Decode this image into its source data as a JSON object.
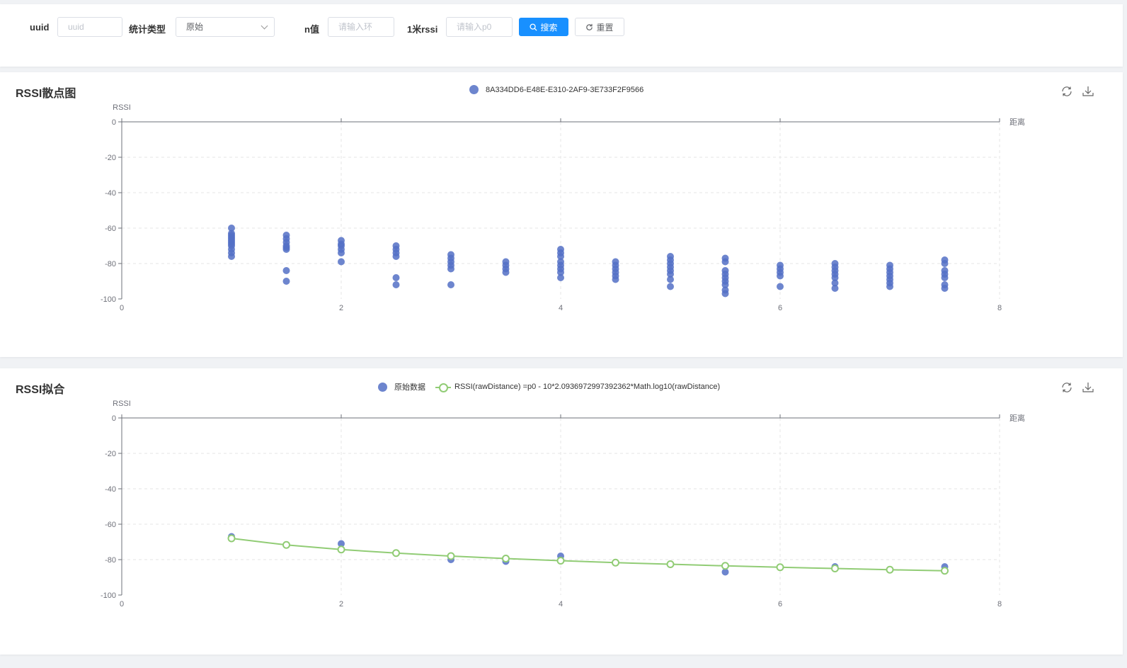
{
  "filters": {
    "uuid_label": "uuid",
    "uuid_placeholder": "uuid",
    "type_label": "统计类型",
    "type_value": "原始",
    "n_label": "n值",
    "n_placeholder": "请输入环",
    "rssi_label": "1米rssi",
    "rssi_placeholder": "请输入p0",
    "search_label": "搜索",
    "reset_label": "重置"
  },
  "colors": {
    "scatter": "#5470c6",
    "fit": "#91cc75",
    "primary": "#1890ff"
  },
  "chart_data": [
    {
      "type": "scatter",
      "title": "RSSI散点图",
      "ylabel": "RSSI",
      "xlabel": "距离",
      "xlim": [
        0,
        8
      ],
      "ylim": [
        -100,
        0
      ],
      "xticks": [
        0,
        2,
        4,
        6,
        8
      ],
      "yticks": [
        0,
        -20,
        -40,
        -60,
        -80,
        -100
      ],
      "grid": true,
      "legend_position": "top-center",
      "series": [
        {
          "name": "8A334DD6-E48E-E310-2AF9-3E733F2F9566",
          "points": [
            [
              1,
              -60
            ],
            [
              1,
              -63
            ],
            [
              1,
              -64
            ],
            [
              1,
              -65
            ],
            [
              1,
              -66
            ],
            [
              1,
              -67
            ],
            [
              1,
              -68
            ],
            [
              1,
              -69
            ],
            [
              1,
              -70
            ],
            [
              1,
              -72
            ],
            [
              1,
              -74
            ],
            [
              1,
              -76
            ],
            [
              1.5,
              -64
            ],
            [
              1.5,
              -66
            ],
            [
              1.5,
              -68
            ],
            [
              1.5,
              -70
            ],
            [
              1.5,
              -71
            ],
            [
              1.5,
              -72
            ],
            [
              1.5,
              -84
            ],
            [
              1.5,
              -90
            ],
            [
              2,
              -67
            ],
            [
              2,
              -69
            ],
            [
              2,
              -70
            ],
            [
              2,
              -72
            ],
            [
              2,
              -74
            ],
            [
              2,
              -79
            ],
            [
              2.5,
              -70
            ],
            [
              2.5,
              -72
            ],
            [
              2.5,
              -74
            ],
            [
              2.5,
              -76
            ],
            [
              2.5,
              -88
            ],
            [
              2.5,
              -92
            ],
            [
              3,
              -75
            ],
            [
              3,
              -77
            ],
            [
              3,
              -79
            ],
            [
              3,
              -81
            ],
            [
              3,
              -83
            ],
            [
              3,
              -92
            ],
            [
              3.5,
              -79
            ],
            [
              3.5,
              -81
            ],
            [
              3.5,
              -83
            ],
            [
              3.5,
              -85
            ],
            [
              4,
              -72
            ],
            [
              4,
              -74
            ],
            [
              4,
              -76
            ],
            [
              4,
              -79
            ],
            [
              4,
              -81
            ],
            [
              4,
              -83
            ],
            [
              4,
              -85
            ],
            [
              4,
              -88
            ],
            [
              4.5,
              -79
            ],
            [
              4.5,
              -81
            ],
            [
              4.5,
              -83
            ],
            [
              4.5,
              -85
            ],
            [
              4.5,
              -87
            ],
            [
              4.5,
              -89
            ],
            [
              5,
              -76
            ],
            [
              5,
              -78
            ],
            [
              5,
              -80
            ],
            [
              5,
              -82
            ],
            [
              5,
              -84
            ],
            [
              5,
              -86
            ],
            [
              5,
              -89
            ],
            [
              5,
              -93
            ],
            [
              5.5,
              -77
            ],
            [
              5.5,
              -79
            ],
            [
              5.5,
              -84
            ],
            [
              5.5,
              -86
            ],
            [
              5.5,
              -88
            ],
            [
              5.5,
              -90
            ],
            [
              5.5,
              -92
            ],
            [
              5.5,
              -95
            ],
            [
              5.5,
              -97
            ],
            [
              6,
              -81
            ],
            [
              6,
              -83
            ],
            [
              6,
              -85
            ],
            [
              6,
              -87
            ],
            [
              6,
              -93
            ],
            [
              6.5,
              -80
            ],
            [
              6.5,
              -82
            ],
            [
              6.5,
              -84
            ],
            [
              6.5,
              -86
            ],
            [
              6.5,
              -88
            ],
            [
              6.5,
              -91
            ],
            [
              6.5,
              -94
            ],
            [
              7,
              -81
            ],
            [
              7,
              -83
            ],
            [
              7,
              -85
            ],
            [
              7,
              -87
            ],
            [
              7,
              -89
            ],
            [
              7,
              -91
            ],
            [
              7,
              -93
            ],
            [
              7.5,
              -78
            ],
            [
              7.5,
              -80
            ],
            [
              7.5,
              -84
            ],
            [
              7.5,
              -86
            ],
            [
              7.5,
              -88
            ],
            [
              7.5,
              -92
            ],
            [
              7.5,
              -94
            ]
          ]
        }
      ]
    },
    {
      "type": "scatter",
      "title": "RSSI拟合",
      "ylabel": "RSSI",
      "xlabel": "距离",
      "xlim": [
        0,
        8
      ],
      "ylim": [
        -100,
        0
      ],
      "xticks": [
        0,
        2,
        4,
        6,
        8
      ],
      "yticks": [
        0,
        -20,
        -40,
        -60,
        -80,
        -100
      ],
      "grid": true,
      "legend_position": "top-center",
      "series": [
        {
          "name": "原始数据",
          "points": [
            [
              1,
              -67
            ],
            [
              2,
              -71
            ],
            [
              3,
              -80
            ],
            [
              3.5,
              -81
            ],
            [
              4,
              -78
            ],
            [
              5.5,
              -87
            ],
            [
              6.5,
              -84
            ],
            [
              7.5,
              -84
            ]
          ]
        },
        {
          "name": "RSSI(rawDistance) =p0 - 10*2.0936972997392362*Math.log10(rawDistance)",
          "line": true,
          "points": [
            [
              1,
              -68
            ],
            [
              1.5,
              -71.7
            ],
            [
              2,
              -74.3
            ],
            [
              2.5,
              -76.3
            ],
            [
              3,
              -78
            ],
            [
              3.5,
              -79.4
            ],
            [
              4,
              -80.6
            ],
            [
              4.5,
              -81.7
            ],
            [
              5,
              -82.6
            ],
            [
              5.5,
              -83.5
            ],
            [
              6,
              -84.3
            ],
            [
              6.5,
              -85
            ],
            [
              7,
              -85.7
            ],
            [
              7.5,
              -86.3
            ]
          ]
        }
      ]
    }
  ]
}
